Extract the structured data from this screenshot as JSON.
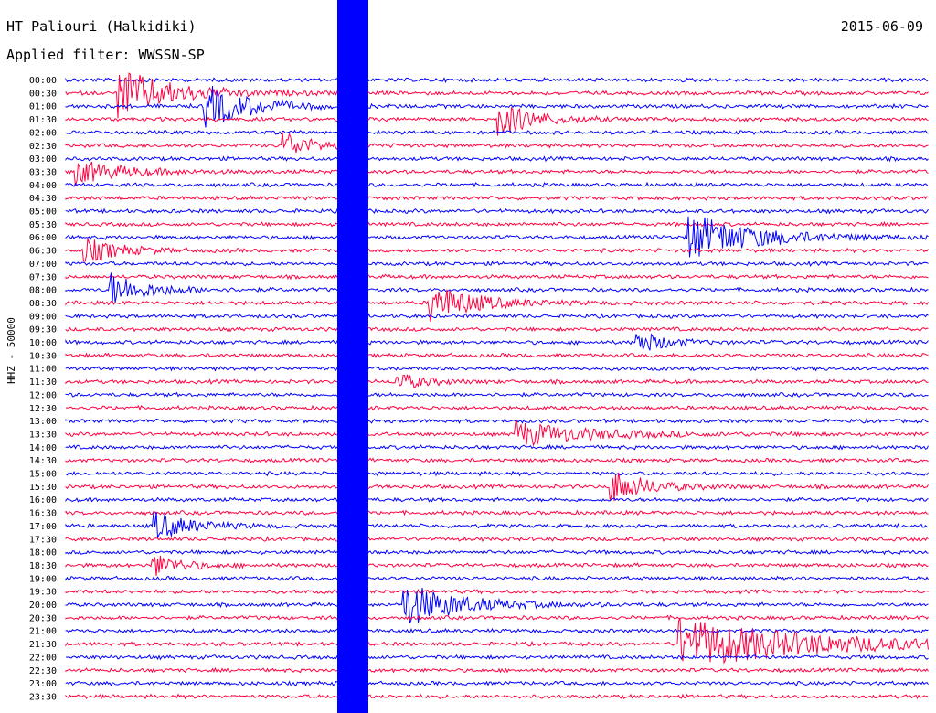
{
  "header": {
    "station": "HT Paliouri (Halkidiki)",
    "filter": "Applied filter: WWSSN-SP",
    "date": "2015-06-09"
  },
  "chart_data": {
    "type": "line",
    "title": "HT Paliouri (Halkidiki)",
    "subtitle": "Applied filter: WWSSN-SP",
    "date": "2015-06-09",
    "ylabel": "HHZ - 50000",
    "row_times": [
      "00:00",
      "00:30",
      "01:00",
      "01:30",
      "02:00",
      "02:30",
      "03:00",
      "03:30",
      "04:00",
      "04:30",
      "05:00",
      "05:30",
      "06:00",
      "06:30",
      "07:00",
      "07:30",
      "08:00",
      "08:30",
      "09:00",
      "09:30",
      "10:00",
      "10:30",
      "11:00",
      "11:30",
      "12:00",
      "12:30",
      "13:00",
      "13:30",
      "14:00",
      "14:30",
      "15:00",
      "15:30",
      "16:00",
      "16:30",
      "17:00",
      "17:30",
      "18:00",
      "18:30",
      "19:00",
      "19:30",
      "20:00",
      "20:30",
      "21:00",
      "21:30",
      "22:00",
      "22:30",
      "23:00",
      "23:30"
    ],
    "row_colors": [
      "#0000ff",
      "#ff0040"
    ],
    "events_minutes": [
      {
        "row": 1,
        "at": 0.06,
        "amp": 1.0,
        "decay": 0.06
      },
      {
        "row": 2,
        "at": 0.16,
        "amp": 0.9,
        "decay": 0.05
      },
      {
        "row": 3,
        "at": 0.5,
        "amp": 0.7,
        "decay": 0.04
      },
      {
        "row": 5,
        "at": 0.25,
        "amp": 0.6,
        "decay": 0.03
      },
      {
        "row": 7,
        "at": 0.01,
        "amp": 0.5,
        "decay": 0.05
      },
      {
        "row": 12,
        "at": 0.72,
        "amp": 1.0,
        "decay": 0.07
      },
      {
        "row": 13,
        "at": 0.02,
        "amp": 0.5,
        "decay": 0.04
      },
      {
        "row": 16,
        "at": 0.05,
        "amp": 0.7,
        "decay": 0.04
      },
      {
        "row": 17,
        "at": 0.42,
        "amp": 0.8,
        "decay": 0.05
      },
      {
        "row": 20,
        "at": 0.66,
        "amp": 0.5,
        "decay": 0.03
      },
      {
        "row": 23,
        "at": 0.38,
        "amp": 0.4,
        "decay": 0.03
      },
      {
        "row": 27,
        "at": 0.52,
        "amp": 0.5,
        "decay": 0.08
      },
      {
        "row": 31,
        "at": 0.63,
        "amp": 0.7,
        "decay": 0.04
      },
      {
        "row": 34,
        "at": 0.1,
        "amp": 0.6,
        "decay": 0.04
      },
      {
        "row": 37,
        "at": 0.1,
        "amp": 0.5,
        "decay": 0.03
      },
      {
        "row": 40,
        "at": 0.39,
        "amp": 0.9,
        "decay": 0.06
      },
      {
        "row": 43,
        "at": 0.71,
        "amp": 1.0,
        "decay": 0.15
      }
    ]
  }
}
